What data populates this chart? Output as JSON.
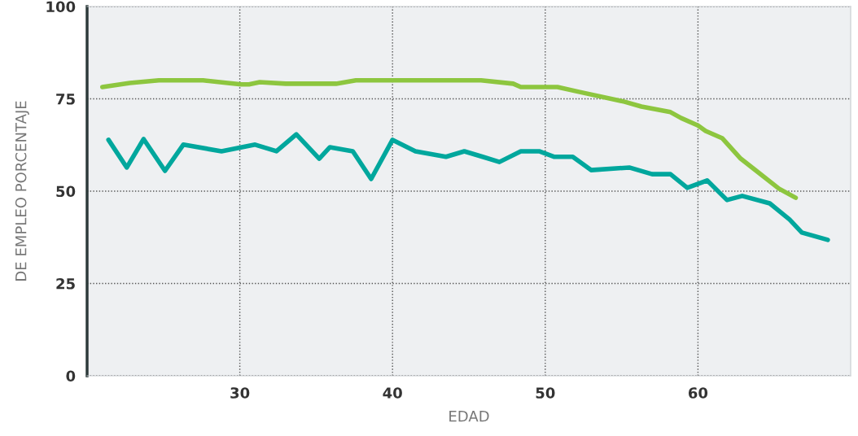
{
  "chart_data": {
    "type": "line",
    "xlabel": "EDAD",
    "ylabel": "DE EMPLEO PORCENTAJE",
    "xlim": [
      20,
      70
    ],
    "xticks": [
      30,
      40,
      50,
      60
    ],
    "ylim": [
      0,
      100
    ],
    "yticks": [
      0,
      25,
      50,
      75,
      100
    ],
    "grid": true,
    "marker": "none",
    "line_style": "solid",
    "series": [
      {
        "color": "#8dc63f",
        "x": [
          21.0,
          22.8,
          24.7,
          27.6,
          29.2,
          30.1,
          30.6,
          31.3,
          33.0,
          36.3,
          37.6,
          45.8,
          47.9,
          48.4,
          50.8,
          52.2,
          55.2,
          56.3,
          58.2,
          58.9,
          60.0,
          60.5,
          61.6,
          62.8,
          63.7,
          65.3,
          66.4
        ],
        "values": [
          78.2,
          79.3,
          80.0,
          80.0,
          79.3,
          78.9,
          78.9,
          79.5,
          79.1,
          79.1,
          80.0,
          80.0,
          79.1,
          78.2,
          78.2,
          76.9,
          74.2,
          72.9,
          71.4,
          69.8,
          67.8,
          66.3,
          64.3,
          58.8,
          55.9,
          50.7,
          48.2
        ]
      },
      {
        "color": "#00a79d",
        "x": [
          21.4,
          22.6,
          23.7,
          25.1,
          26.3,
          28.8,
          31.0,
          32.4,
          33.7,
          35.2,
          35.9,
          37.4,
          38.6,
          40.0,
          41.5,
          43.5,
          44.7,
          45.9,
          47.0,
          48.4,
          49.6,
          50.6,
          51.8,
          53.0,
          55.5,
          57.0,
          58.2,
          59.3,
          60.6,
          61.9,
          62.9,
          64.7,
          66.0,
          66.8,
          68.5
        ],
        "values": [
          63.9,
          56.4,
          64.1,
          55.5,
          62.6,
          60.8,
          62.6,
          60.8,
          65.4,
          58.8,
          61.9,
          60.8,
          53.3,
          63.9,
          60.8,
          59.3,
          60.8,
          59.3,
          57.9,
          60.8,
          60.8,
          59.3,
          59.3,
          55.7,
          56.4,
          54.6,
          54.6,
          50.9,
          52.9,
          47.6,
          48.7,
          46.7,
          42.3,
          38.8,
          36.8
        ]
      }
    ]
  }
}
